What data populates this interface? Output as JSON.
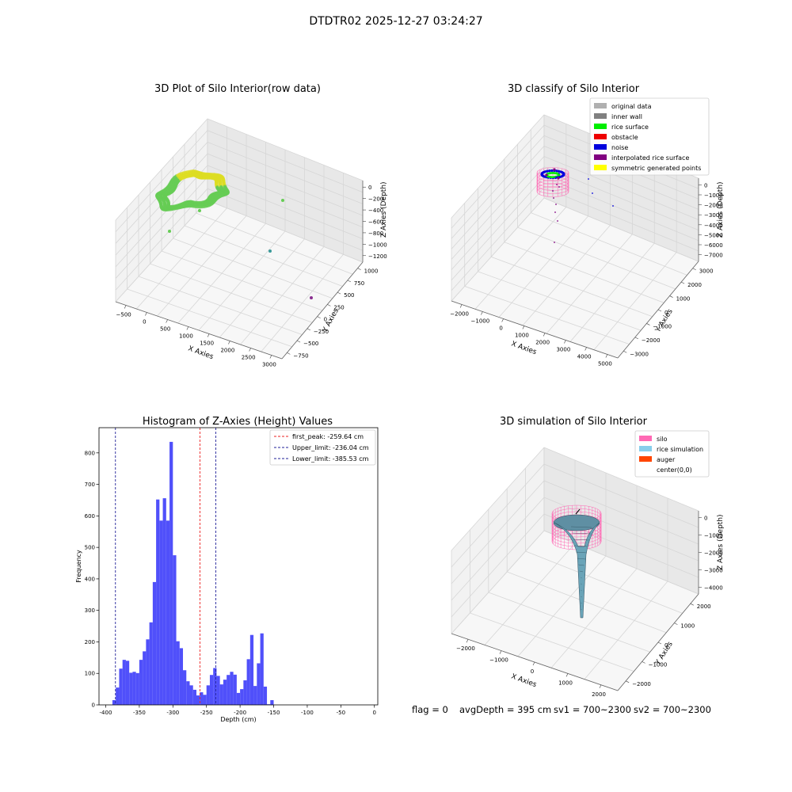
{
  "figure": {
    "suptitle": "DTDTR02 2025-12-27 03:24:27",
    "footer": {
      "flag": "flag = 0",
      "avg_depth": "avgDepth = 395 cm",
      "sv1": "sv1 = 700~2300",
      "sv2": "sv2 = 700~2300"
    }
  },
  "chart_data": [
    {
      "type": "scatter3d",
      "title": "3D Plot of Silo Interior(row data)",
      "xlabel": "X Axies",
      "ylabel": "Y Axies",
      "zlabel": "Z Axies (Depth)",
      "x_ticks": [
        "−500",
        "0",
        "500",
        "1000",
        "1500",
        "2000",
        "2500",
        "3000"
      ],
      "y_ticks": [
        "−750",
        "−500",
        "−250",
        "0",
        "250",
        "500",
        "750",
        "1000"
      ],
      "z_ticks": [
        "0",
        "−200",
        "−400",
        "−600",
        "−800",
        "−1000",
        "−1200"
      ],
      "xlim": [
        -600,
        3100
      ],
      "ylim": [
        -800,
        1050
      ],
      "zlim": [
        -1300,
        50
      ],
      "grid": true,
      "colors": {
        "main": "#66cc55",
        "highlight": "#dddd22",
        "outlier_teal": "#3a9a9a",
        "outlier_purple": "#8a3090"
      }
    },
    {
      "type": "scatter3d",
      "title": "3D classify of Silo Interior",
      "xlabel": "X Axies",
      "ylabel": "Y Axies",
      "zlabel": "Z Axies (Depth)",
      "x_ticks": [
        "−2000",
        "−1000",
        "0",
        "1000",
        "2000",
        "3000",
        "4000",
        "5000"
      ],
      "y_ticks": [
        "−3000",
        "−2000",
        "−1000",
        "0",
        "1000",
        "2000",
        "3000"
      ],
      "z_ticks": [
        "0",
        "−1000",
        "−2000",
        "−3000",
        "−4000",
        "−5000",
        "−6000",
        "−7000"
      ],
      "grid": true,
      "legend_position": "top-right",
      "legend": [
        {
          "label": "original data",
          "color": "#b0b0b0"
        },
        {
          "label": "inner wall",
          "color": "#808080"
        },
        {
          "label": "rice surface",
          "color": "#00ee00"
        },
        {
          "label": "obstacle",
          "color": "#ee0000"
        },
        {
          "label": "noise",
          "color": "#0000dd"
        },
        {
          "label": "interpolated rice surface",
          "color": "#800080"
        },
        {
          "label": "symmetric generated points",
          "color": "#ffff00"
        }
      ]
    },
    {
      "type": "bar",
      "title": "Histogram of Z-Axies (Height) Values",
      "xlabel": "Depth (cm)",
      "ylabel": "Frequency",
      "xlim": [
        -410,
        5
      ],
      "ylim": [
        0,
        880
      ],
      "bin_start": -390,
      "bin_width": 5,
      "values": [
        15,
        55,
        115,
        143,
        140,
        102,
        105,
        101,
        143,
        170,
        208,
        262,
        390,
        652,
        585,
        656,
        585,
        835,
        475,
        202,
        180,
        110,
        75,
        62,
        48,
        30,
        40,
        32,
        62,
        95,
        117,
        92,
        65,
        80,
        95,
        105,
        96,
        38,
        50,
        78,
        145,
        222,
        60,
        132,
        227,
        58,
        2,
        15
      ],
      "x_ticks": [
        -400,
        -350,
        -300,
        -250,
        -200,
        -150,
        -100,
        -50,
        0
      ],
      "y_ticks": [
        0,
        100,
        200,
        300,
        400,
        500,
        600,
        700,
        800
      ],
      "bar_color": "#5050fa",
      "grid": false,
      "legend_position": "top-right",
      "vlines": [
        {
          "label": "first_peak: -259.64 cm",
          "x": -259.64,
          "color": "#ee2222"
        },
        {
          "label": "Upper_limit: -236.04 cm",
          "x": -236.04,
          "color": "#22229a"
        },
        {
          "label": "Lower_limit: -385.53 cm",
          "x": -385.53,
          "color": "#22229a"
        }
      ]
    },
    {
      "type": "surface3d",
      "title": "3D simulation of Silo Interior",
      "xlabel": "X Axies",
      "ylabel": "Y Axies",
      "zlabel": "Z Axies (Depth)",
      "x_ticks": [
        "−2000",
        "−1000",
        "0",
        "1000",
        "2000"
      ],
      "y_ticks": [
        "−2000",
        "−1000",
        "0",
        "1000",
        "2000"
      ],
      "z_ticks": [
        "0",
        "−1000",
        "−2000",
        "−3000",
        "−4000"
      ],
      "grid": true,
      "legend_position": "top-right",
      "legend": [
        {
          "label": "silo",
          "color": "#ff69b4"
        },
        {
          "label": "rice simulation",
          "color": "#87ceeb"
        },
        {
          "label": "auger",
          "color": "#ff4500"
        },
        {
          "label": "center(0,0)",
          "color": "#ffffff"
        }
      ]
    }
  ]
}
